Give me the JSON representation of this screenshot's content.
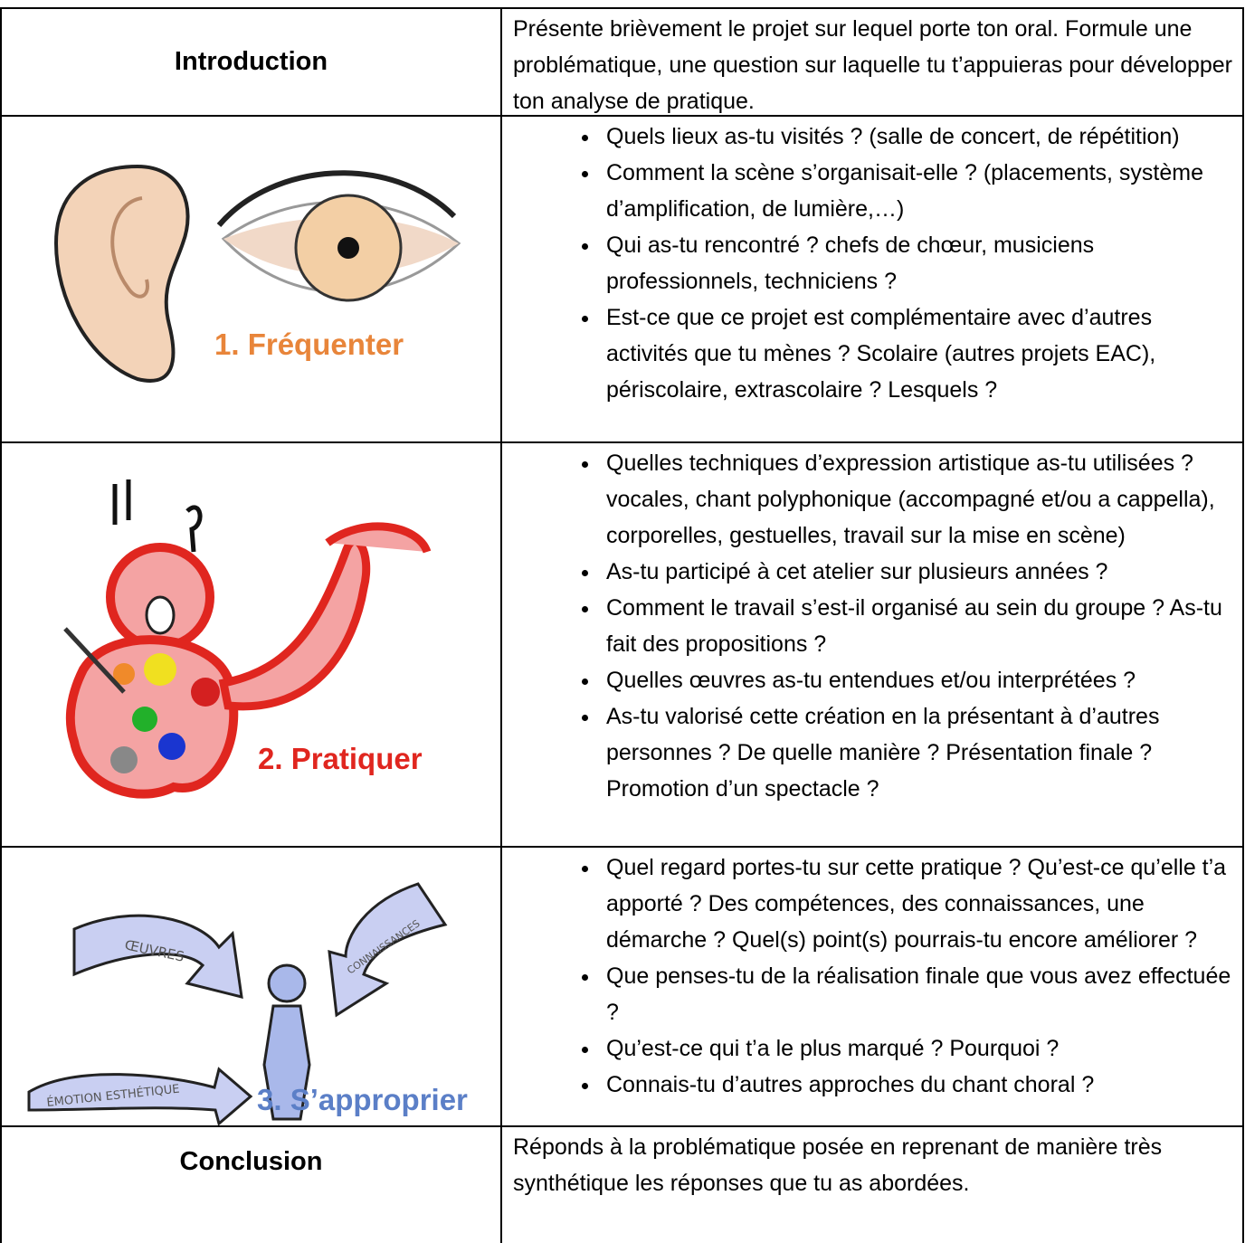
{
  "table": {
    "rows": [
      {
        "label": "Introduction",
        "text": "Présente brièvement le projet sur lequel porte ton oral. Formule une problématique, une question sur laquelle tu t’appuieras pour développer ton analyse de pratique."
      },
      {
        "label": "1. Fréquenter",
        "items": [
          "Quels lieux as-tu visités ? (salle de concert, de répétition)",
          "Comment la scène s’organisait-elle ? (placements, système d’amplification, de lumière,…)",
          "Qui as-tu rencontré ? chefs de chœur, musiciens professionnels, techniciens ?",
          "Est-ce que ce projet est complémentaire avec d’autres activités que tu mènes ? Scolaire (autres projets EAC), périscolaire, extrascolaire ? Lesquels ?"
        ]
      },
      {
        "label": "2. Pratiquer",
        "items": [
          "Quelles techniques d’expression artistique as-tu utilisées ? vocales, chant polyphonique (accompagné et/ou a cappella), corporelles, gestuelles, travail sur la mise en scène)",
          "As-tu participé à cet atelier sur plusieurs années ?",
          "Comment le travail s’est-il organisé au sein du groupe ? As-tu fait des propositions ?",
          "Quelles œuvres as-tu entendues et/ou interprétées ?",
          "As-tu valorisé cette création en la présentant à d’autres personnes ? De quelle manière ? Présentation finale ? Promotion d’un spectacle ?"
        ]
      },
      {
        "label": "3. S’approprier",
        "image_labels": [
          "ŒUVRES",
          "CONNAISSANCES",
          "ÉMOTION ESTHÉTIQUE"
        ],
        "items": [
          "Quel regard portes-tu sur cette pratique ? Qu’est-ce qu’elle t’a apporté ? Des compétences, des connaissances, une démarche ? Quel(s) point(s) pourrais-tu encore améliorer ?",
          "Que penses-tu de la réalisation finale que vous avez effectuée ?",
          "Qu’est-ce qui t’a le plus marqué ? Pourquoi ?",
          "Connais-tu d’autres approches du chant choral ?"
        ]
      },
      {
        "label": "Conclusion",
        "text": "Réponds à la problématique posée en reprenant de manière très synthétique les réponses que tu as abordées."
      }
    ]
  }
}
